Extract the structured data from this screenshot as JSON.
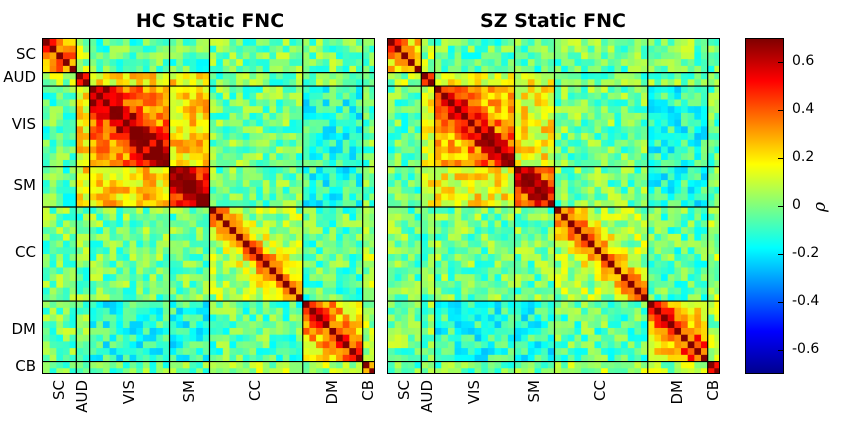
{
  "chart_data": {
    "type": "heatmap",
    "panels": [
      {
        "title": "HC Static FNC",
        "variant": "hc"
      },
      {
        "title": "SZ Static FNC",
        "variant": "sz"
      }
    ],
    "domains": [
      {
        "label": "SC",
        "size": 5
      },
      {
        "label": "AUD",
        "size": 2
      },
      {
        "label": "VIS",
        "size": 12
      },
      {
        "label": "SM",
        "size": 6
      },
      {
        "label": "CC",
        "size": 14
      },
      {
        "label": "DM",
        "size": 9
      },
      {
        "label": "CB",
        "size": 2
      }
    ],
    "colorbar": {
      "label": "ρ",
      "min": -0.7,
      "max": 0.7,
      "ticks": [
        "0.6",
        "0.4",
        "0.2",
        "0",
        "-0.2",
        "-0.4",
        "-0.6"
      ],
      "tick_values": [
        0.6,
        0.4,
        0.2,
        0,
        -0.2,
        -0.4,
        -0.6
      ],
      "colormap": "jet"
    },
    "diagonal_value": 0.7
  }
}
